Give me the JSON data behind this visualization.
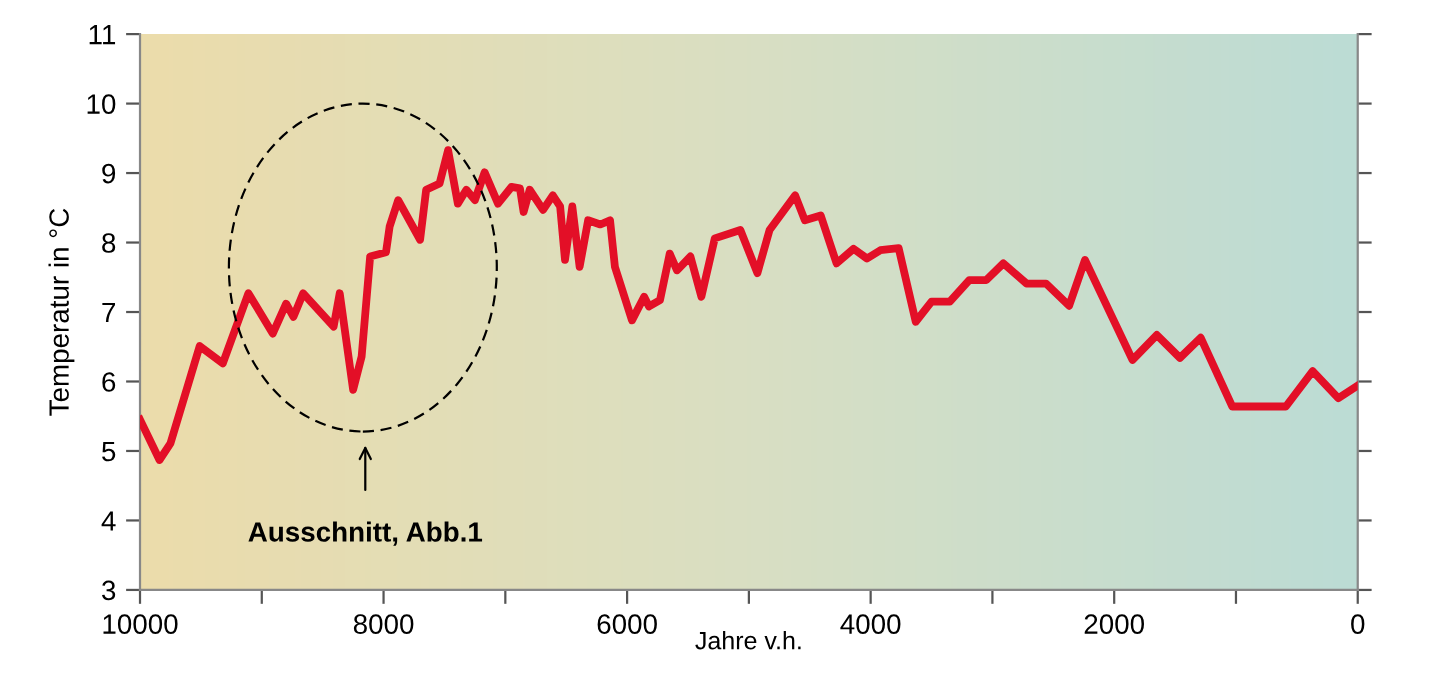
{
  "chart_data": {
    "type": "line",
    "xlabel": "Jahre v.h.",
    "ylabel": "Temperatur in °C",
    "x": [
      10000,
      9840,
      9750,
      9510,
      9320,
      9110,
      8910,
      8800,
      8740,
      8660,
      8410,
      8360,
      8250,
      8180,
      8110,
      7980,
      7950,
      7880,
      7700,
      7650,
      7540,
      7470,
      7390,
      7320,
      7250,
      7170,
      7060,
      6950,
      6880,
      6850,
      6800,
      6690,
      6610,
      6550,
      6510,
      6450,
      6390,
      6320,
      6220,
      6140,
      6100,
      5960,
      5860,
      5820,
      5730,
      5650,
      5590,
      5480,
      5390,
      5280,
      5070,
      4930,
      4830,
      4620,
      4540,
      4410,
      4280,
      4140,
      4030,
      3920,
      3770,
      3630,
      3500,
      3350,
      3190,
      3050,
      2910,
      2720,
      2560,
      2370,
      2240,
      1850,
      1650,
      1460,
      1290,
      1030,
      590,
      370,
      160,
      0
    ],
    "series": [
      {
        "color": "#e30f27",
        "values": [
          5.45,
          4.87,
          5.11,
          6.51,
          6.26,
          7.27,
          6.69,
          7.12,
          6.93,
          7.27,
          6.79,
          7.27,
          5.88,
          6.36,
          7.8,
          7.86,
          8.23,
          8.61,
          8.04,
          8.76,
          8.85,
          9.33,
          8.56,
          8.76,
          8.61,
          9.01,
          8.56,
          8.8,
          8.78,
          8.44,
          8.76,
          8.47,
          8.68,
          8.52,
          7.75,
          8.52,
          7.65,
          8.32,
          8.26,
          8.32,
          7.65,
          6.88,
          7.22,
          7.08,
          7.17,
          7.84,
          7.6,
          7.8,
          7.22,
          8.06,
          8.18,
          7.56,
          8.18,
          8.68,
          8.32,
          8.39,
          7.7,
          7.91,
          7.77,
          7.89,
          7.92,
          6.86,
          7.15,
          7.15,
          7.46,
          7.46,
          7.7,
          7.41,
          7.41,
          7.09,
          7.75,
          6.31,
          6.67,
          6.34,
          6.63,
          5.64,
          5.64,
          6.15,
          5.76,
          5.94
        ]
      }
    ],
    "xlim": [
      10000,
      0
    ],
    "xticks": [
      10000,
      {
        "value": 9000,
        "label": null
      },
      8000,
      {
        "value": 7000,
        "label": null
      },
      6000,
      {
        "value": 5000,
        "label": null
      },
      4000,
      {
        "value": 3000,
        "label": null
      },
      2000,
      {
        "value": 1000,
        "label": null
      },
      0
    ],
    "ylim": [
      3,
      11
    ],
    "yticks": [
      3,
      4,
      5,
      6,
      7,
      8,
      9,
      10,
      11
    ],
    "annotations": [
      "Ausschnitt, Abb.1"
    ],
    "grid": false,
    "legend": false,
    "marker": "none",
    "line_style": "solid"
  }
}
